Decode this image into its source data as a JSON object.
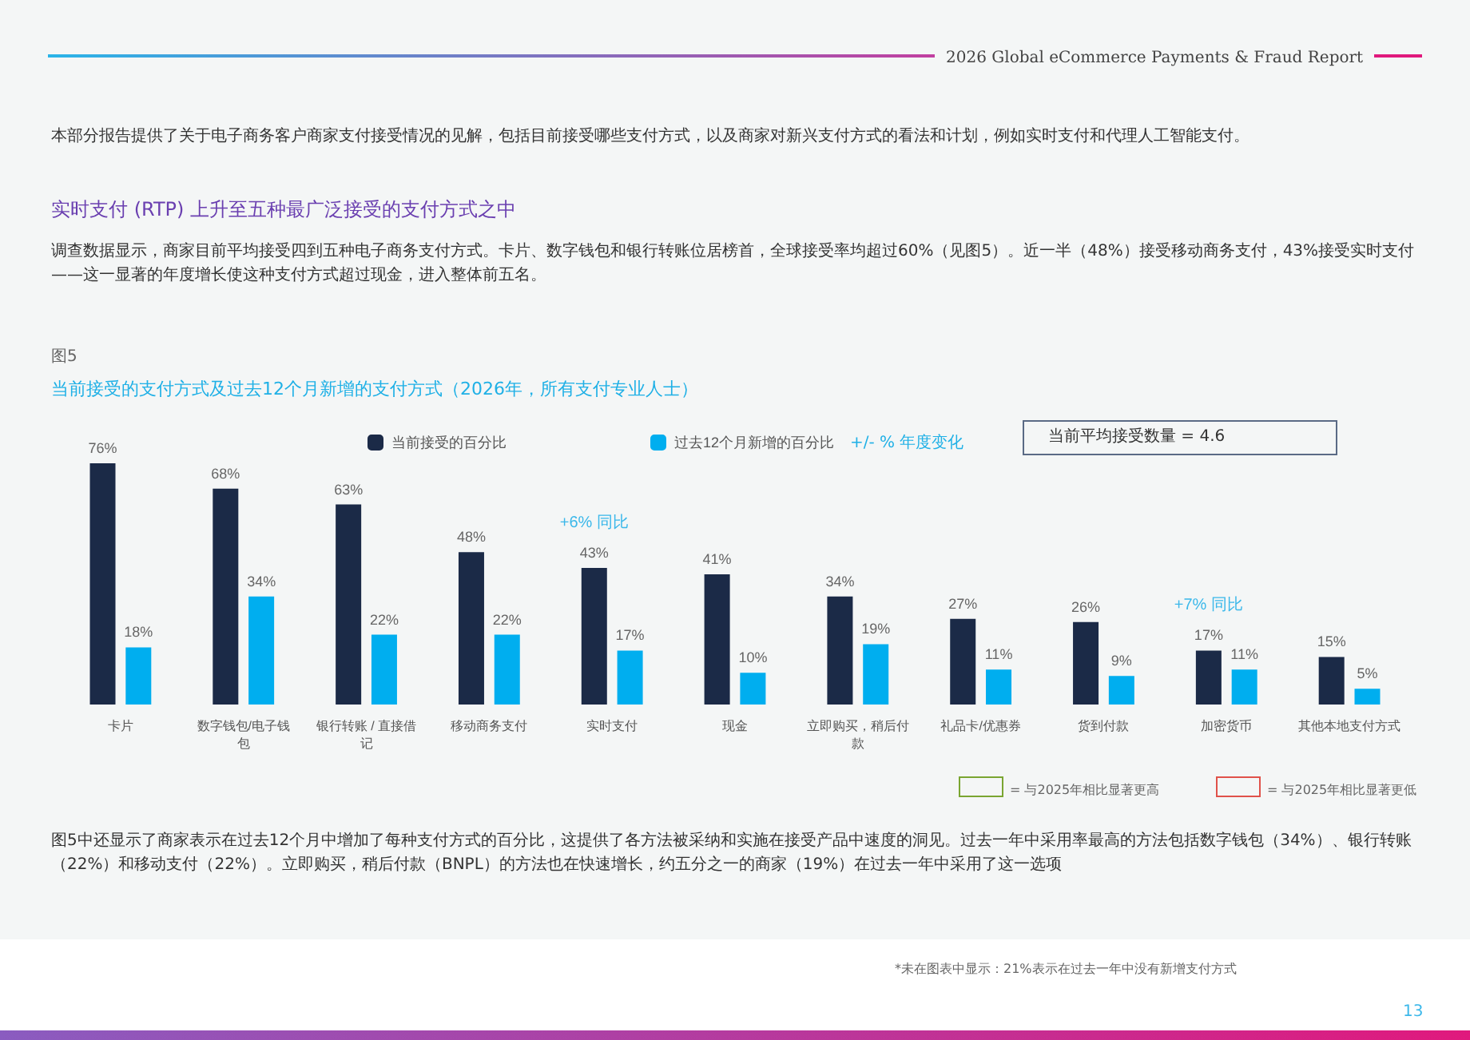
{
  "chart_data": {
    "type": "bar",
    "title": "当前接受的支付方式及过去12个月新增的支付方式（2026年，所有支付专业人士）",
    "subtitle": "图5",
    "categories": [
      "卡片",
      "数字钱包/电子钱包",
      "银行转账 / 直接借记",
      "移动商务支付",
      "实时支付",
      "现金",
      "立即购买，稍后付款",
      "礼品卡/优惠券",
      "货到付款",
      "加密货币",
      "其他本地支付方式"
    ],
    "series": [
      {
        "name": "当前接受的百分比",
        "color": "#1b2a47",
        "values": [
          76,
          68,
          63,
          48,
          43,
          41,
          34,
          27,
          26,
          17,
          15
        ],
        "value_labels": [
          "76%",
          "68%",
          "63%",
          "48%",
          "43%",
          "41%",
          "34%",
          "27%",
          "26%",
          "17%",
          "15%"
        ]
      },
      {
        "name": "过去12个月新增的百分比",
        "color": "#00aeef",
        "values": [
          18,
          34,
          22,
          22,
          17,
          10,
          19,
          11,
          9,
          11,
          5
        ],
        "value_labels": [
          "18%",
          "34%",
          "22%",
          "22%",
          "17%",
          "10%",
          "19%",
          "11%",
          "9%",
          "11%",
          "5%"
        ]
      }
    ],
    "legend": "top",
    "annotations": [
      "2026 Global eCommerce Payments & Fraud Report",
      "本部分报告提供了关于电子商务客户商家支付接受情况的见解，包括目前接受哪些支付方式，以及商家对新兴支付方式的看法和计划，例如实时支付和代理人工智能支付。",
      "实时支付 (RTP) 上升至五种最广泛接受的支付方式之中",
      "调查数据显示，商家目前平均接受四到五种电子商务支付方式。卡片、数字钱包和银行转账位居榜首，全球接受率均超过60%（见图5）。近一半（48%）接受移动商务支付，43%接受实时支付——这一显著的年度增长使这种支付方式超过现金，进入整体前五名。",
      "+/- % 年度变化",
      "当前平均接受数量 = 4.6",
      "= 与2025年相比显著更高",
      "= 与2025年相比显著更低",
      "图5中还显示了商家表示在过去12个月中增加了每种支付方式的百分比，这提供了各方法被采纳和实施在接受产品中速度的洞见。过去一年中采用率最高的方法包括数字钱包（34%）、银行转账（22%）和移动支付（22%）。立即购买，稍后付款（BNPL）的方法也在快速增长，约五分之一的商家（19%）在过去一年中采用了这一选项",
      "*未在图表中显示：21%表示在过去一年中没有新增支付方式",
      "13",
      {
        "text": "+6% 同比",
        "x": "实时支付",
        "y": 43
      },
      {
        "text": "+7% 同比",
        "x": "加密货币",
        "y": 17
      }
    ]
  }
}
